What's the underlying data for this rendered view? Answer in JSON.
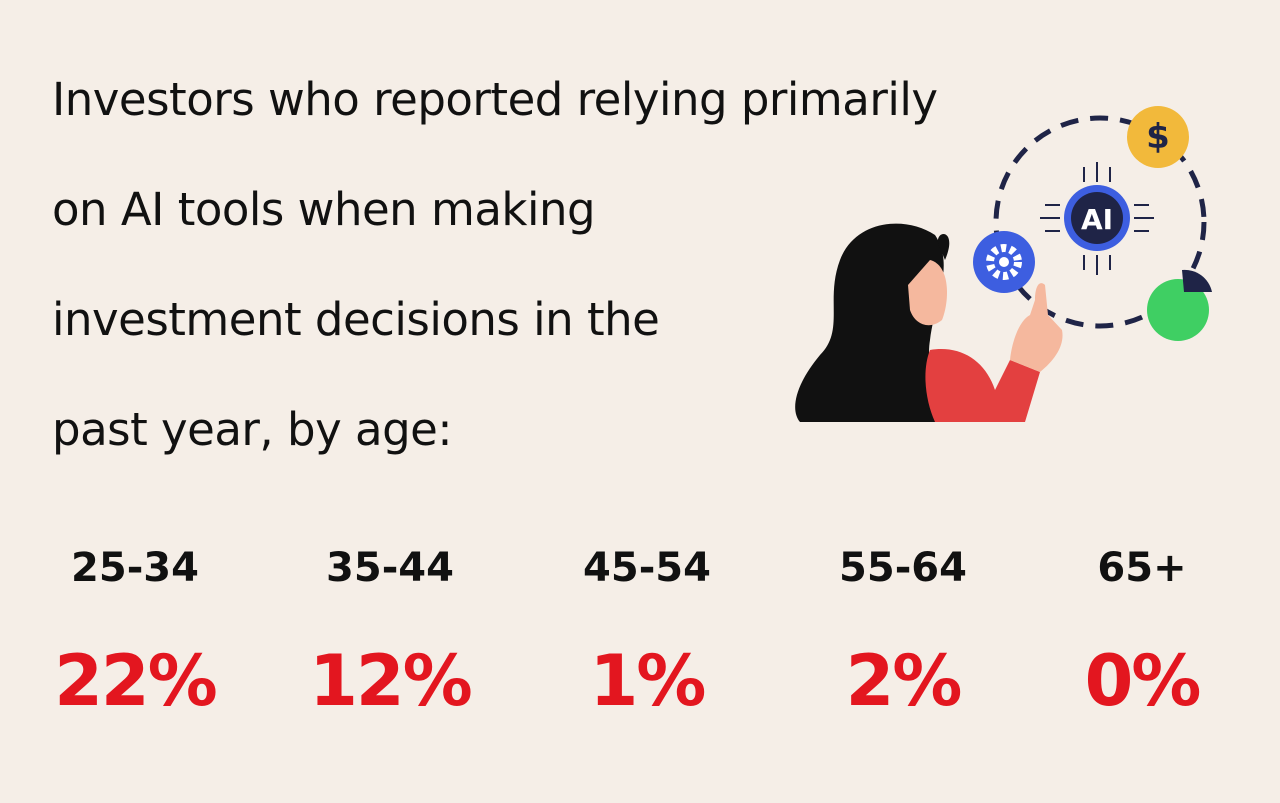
{
  "title_lines": [
    "Investors who reported relying primarily",
    "on AI tools when making",
    "investment decisions in the",
    "past year, by age:"
  ],
  "illustration": {
    "chip_label": "AI",
    "coin_label": "$"
  },
  "stats": [
    {
      "age": "25-34",
      "value": "22%"
    },
    {
      "age": "35-44",
      "value": "12%"
    },
    {
      "age": "45-54",
      "value": "1%"
    },
    {
      "age": "55-64",
      "value": "2%"
    },
    {
      "age": "65+",
      "value": "0%"
    }
  ]
}
